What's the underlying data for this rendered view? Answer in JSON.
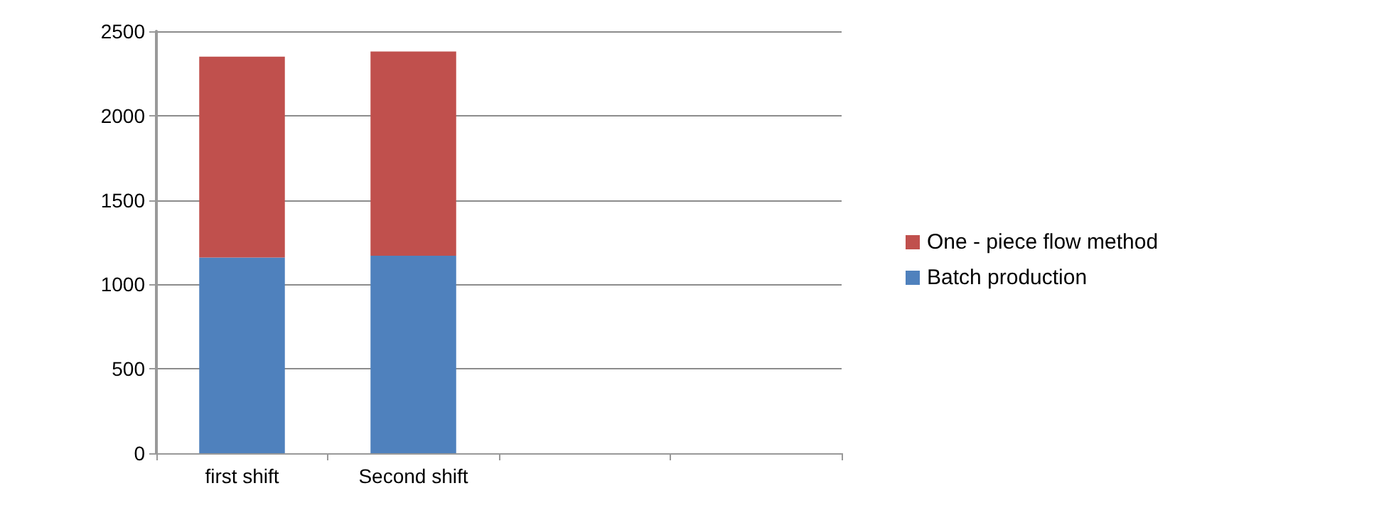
{
  "chart_data": {
    "type": "bar",
    "stacked": true,
    "categories": [
      "first shift",
      "Second shift",
      null,
      null
    ],
    "series": [
      {
        "name": "Batch production",
        "color": "#4f81bd",
        "values": [
          1160,
          1170,
          null,
          null
        ]
      },
      {
        "name": "One - piece flow method",
        "color": "#c0504d",
        "values": [
          1190,
          1210,
          null,
          null
        ]
      }
    ],
    "ylim": [
      0,
      2500
    ],
    "yticks": [
      0,
      500,
      1000,
      1500,
      2000,
      2500
    ],
    "grid": "y",
    "legend": "right"
  }
}
